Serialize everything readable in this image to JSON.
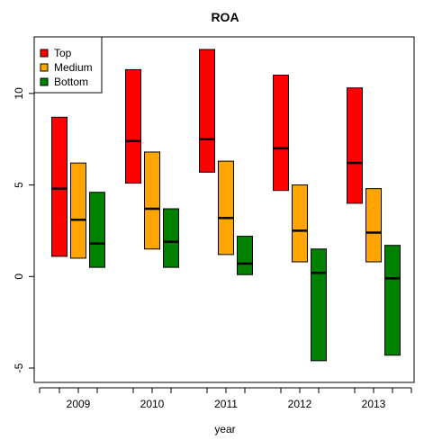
{
  "chart_data": {
    "type": "boxplot",
    "title": "ROA",
    "xlabel": "year",
    "ylabel": "",
    "categories": [
      "2009",
      "2010",
      "2011",
      "2012",
      "2013"
    ],
    "ylim": [
      -5,
      12.5
    ],
    "yticks": [
      -5,
      0,
      5,
      10
    ],
    "ytick_labels": [
      "-5",
      "0",
      "5",
      "10"
    ],
    "legend": {
      "position": "top-left"
    },
    "series": [
      {
        "name": "Top",
        "color": "#ff0000",
        "ranges": [
          {
            "low": 1.1,
            "median": 4.8,
            "high": 8.7
          },
          {
            "low": 5.1,
            "median": 7.4,
            "high": 11.3
          },
          {
            "low": 5.7,
            "median": 7.5,
            "high": 12.4
          },
          {
            "low": 4.7,
            "median": 7.0,
            "high": 11.0
          },
          {
            "low": 4.0,
            "median": 6.2,
            "high": 10.3
          }
        ]
      },
      {
        "name": "Medium",
        "color": "#ffa500",
        "ranges": [
          {
            "low": 1.0,
            "median": 3.1,
            "high": 6.2
          },
          {
            "low": 1.5,
            "median": 3.7,
            "high": 6.8
          },
          {
            "low": 1.2,
            "median": 3.2,
            "high": 6.3
          },
          {
            "low": 0.8,
            "median": 2.5,
            "high": 5.0
          },
          {
            "low": 0.8,
            "median": 2.4,
            "high": 4.8
          }
        ]
      },
      {
        "name": "Bottom",
        "color": "#008000",
        "ranges": [
          {
            "low": 0.5,
            "median": 1.8,
            "high": 4.6
          },
          {
            "low": 0.5,
            "median": 1.9,
            "high": 3.7
          },
          {
            "low": 0.1,
            "median": 0.7,
            "high": 2.2
          },
          {
            "low": -4.6,
            "median": 0.2,
            "high": 1.5
          },
          {
            "low": -4.3,
            "median": -0.1,
            "high": 1.7
          }
        ]
      }
    ]
  }
}
